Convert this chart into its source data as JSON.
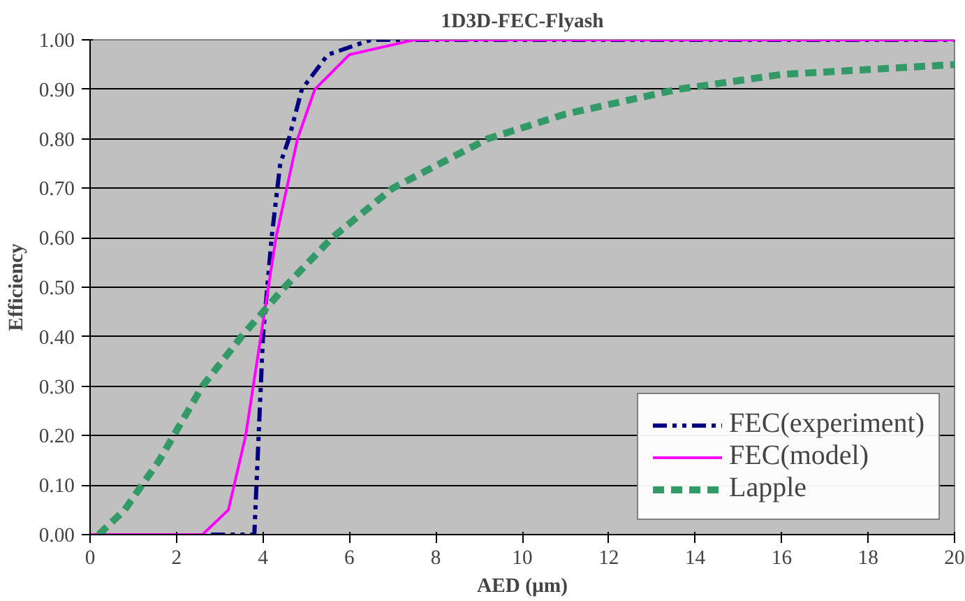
{
  "chart_data": {
    "type": "line",
    "title": "1D3D-FEC-Flyash",
    "xlabel": "AED (µm)",
    "ylabel": "Efficiency",
    "xlim": [
      0,
      20
    ],
    "xticks": [
      0,
      2,
      4,
      6,
      8,
      10,
      12,
      14,
      16,
      18,
      20
    ],
    "ylim": [
      0,
      1
    ],
    "yticks": [
      {
        "value": 0,
        "label": "0.00"
      },
      {
        "value": 0.1,
        "label": "0.10"
      },
      {
        "value": 0.2,
        "label": "0.20"
      },
      {
        "value": 0.3,
        "label": "0.30"
      },
      {
        "value": 0.4,
        "label": "0.40"
      },
      {
        "value": 0.5,
        "label": "0.50"
      },
      {
        "value": 0.6,
        "label": "0.60"
      },
      {
        "value": 0.7,
        "label": "0.70"
      },
      {
        "value": 0.8,
        "label": "0.80"
      },
      {
        "value": 0.9,
        "label": "0.90"
      },
      {
        "value": 1,
        "label": "1.00"
      }
    ],
    "grid": "y",
    "legend": "bottom right",
    "series": [
      {
        "name": "FEC(experiment)",
        "color": "#000080",
        "line_style": "dashdot",
        "x": [
          2.8,
          3.8,
          3.9,
          4.0,
          4.2,
          4.4,
          4.6,
          4.9,
          5.5,
          6.5,
          8,
          20
        ],
        "values": [
          0,
          0,
          0.2,
          0.4,
          0.6,
          0.75,
          0.8,
          0.9,
          0.97,
          1.0,
          1.0,
          1.0
        ]
      },
      {
        "name": "FEC(model)",
        "color": "#ff00ff",
        "line_style": "solid",
        "x": [
          0,
          2.6,
          3.2,
          3.6,
          3.95,
          4.3,
          4.8,
          5.2,
          6.0,
          7.5,
          20
        ],
        "values": [
          0,
          0,
          0.05,
          0.2,
          0.4,
          0.6,
          0.8,
          0.9,
          0.97,
          1.0,
          1.0
        ]
      },
      {
        "name": "Lapple",
        "color": "#339966",
        "line_style": "dashed",
        "x": [
          0.2,
          0.8,
          1.6,
          2.6,
          3.5,
          4.5,
          5.6,
          7.0,
          9.2,
          11,
          13.6,
          16,
          20
        ],
        "values": [
          0,
          0.05,
          0.15,
          0.3,
          0.4,
          0.5,
          0.6,
          0.7,
          0.8,
          0.85,
          0.9,
          0.93,
          0.95
        ]
      }
    ]
  }
}
